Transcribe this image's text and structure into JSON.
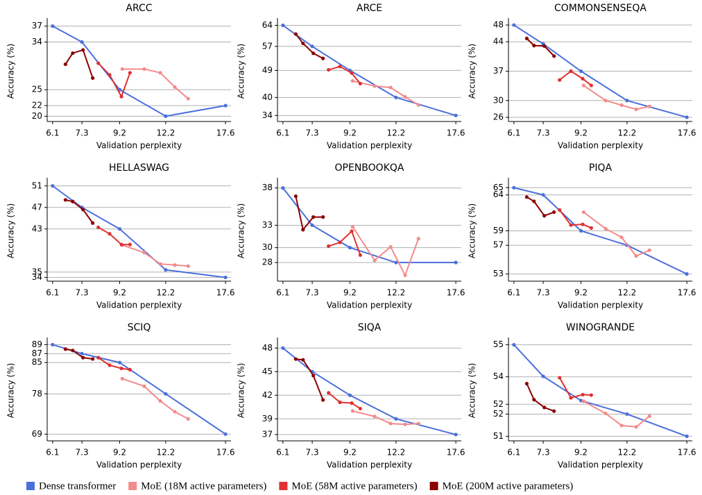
{
  "chart_data": [
    {
      "type": "line",
      "title": "ARCC",
      "xlabel": "Validation perplexity",
      "ylabel": "Accuracy (%)",
      "xscale": "log",
      "grid": true,
      "xlim": [
        5.9,
        18.2
      ],
      "xticks": [
        6.1,
        7.3,
        9.2,
        12.2,
        17.6
      ],
      "ylim": [
        19,
        38
      ],
      "yticks": [
        20,
        22,
        25,
        34,
        37
      ],
      "series": [
        {
          "name": "Dense transformer",
          "color": "#4a6fdc",
          "x": [
            6.1,
            7.3,
            9.2,
            12.2,
            17.6
          ],
          "values": [
            37,
            34,
            25,
            20,
            22
          ]
        },
        {
          "name": "MoE (18M active parameters)",
          "color": "#f28b8b",
          "x": [
            9.35,
            10.7,
            11.8,
            12.9,
            14.0
          ],
          "values": [
            28.9,
            28.9,
            28.2,
            25.5,
            23.3
          ]
        },
        {
          "name": "MoE (58M active parameters)",
          "color": "#e03030",
          "x": [
            8.07,
            8.65,
            9.3,
            9.8
          ],
          "values": [
            30,
            27.8,
            23.7,
            28.2
          ]
        },
        {
          "name": "MoE (200M active parameters)",
          "color": "#8b0000",
          "x": [
            6.6,
            6.9,
            7.35,
            7.8
          ],
          "values": [
            29.8,
            31.9,
            32.5,
            27.2
          ]
        }
      ]
    },
    {
      "type": "line",
      "title": "ARCE",
      "xlabel": "Validation perplexity",
      "ylabel": "Accuracy (%)",
      "xscale": "log",
      "grid": true,
      "xlim": [
        5.9,
        18.2
      ],
      "xticks": [
        6.1,
        7.3,
        9.2,
        12.2,
        17.6
      ],
      "ylim": [
        32,
        65.5
      ],
      "yticks": [
        34,
        40,
        49,
        57,
        64
      ],
      "series": [
        {
          "name": "Dense transformer",
          "color": "#4a6fdc",
          "x": [
            6.1,
            7.3,
            9.2,
            12.2,
            17.6
          ],
          "values": [
            64,
            57,
            49,
            40,
            34
          ]
        },
        {
          "name": "MoE (18M active parameters)",
          "color": "#f28b8b",
          "x": [
            9.35,
            10.7,
            11.8,
            12.9,
            14.0
          ],
          "values": [
            45.5,
            43.8,
            43.3,
            40.2,
            37.5
          ]
        },
        {
          "name": "MoE (58M active parameters)",
          "color": "#e03030",
          "x": [
            8.07,
            8.65,
            9.3,
            9.8
          ],
          "values": [
            49.2,
            50.3,
            48.1,
            44.6
          ]
        },
        {
          "name": "MoE (200M active parameters)",
          "color": "#8b0000",
          "x": [
            6.6,
            6.9,
            7.35,
            7.8
          ],
          "values": [
            61.1,
            58,
            54.7,
            53
          ]
        }
      ]
    },
    {
      "type": "line",
      "title": "COMMONSENSEQA",
      "xlabel": "Validation perplexity",
      "ylabel": "Accuracy (%)",
      "xscale": "log",
      "grid": true,
      "xlim": [
        5.9,
        18.2
      ],
      "xticks": [
        6.1,
        7.3,
        9.2,
        12.2,
        17.6
      ],
      "ylim": [
        25,
        49
      ],
      "yticks": [
        26,
        30,
        37,
        44,
        48
      ],
      "series": [
        {
          "name": "Dense transformer",
          "color": "#4a6fdc",
          "x": [
            6.1,
            7.3,
            9.2,
            12.2,
            17.6
          ],
          "values": [
            48,
            43.5,
            37,
            30,
            26
          ]
        },
        {
          "name": "MoE (18M active parameters)",
          "color": "#f28b8b",
          "x": [
            9.35,
            10.7,
            11.8,
            12.9,
            14.0
          ],
          "values": [
            33.6,
            30,
            28.9,
            27.9,
            28.6
          ]
        },
        {
          "name": "MoE (58M active parameters)",
          "color": "#e03030",
          "x": [
            8.07,
            8.65,
            9.3,
            9.8
          ],
          "values": [
            34.9,
            37,
            35.2,
            33.6
          ]
        },
        {
          "name": "MoE (200M active parameters)",
          "color": "#8b0000",
          "x": [
            6.6,
            6.9,
            7.35,
            7.8
          ],
          "values": [
            44.8,
            43.1,
            43,
            40.6
          ]
        }
      ]
    },
    {
      "type": "line",
      "title": "HELLASWAG",
      "xlabel": "Validation perplexity",
      "ylabel": "Accuracy (%)",
      "xscale": "log",
      "grid": true,
      "xlim": [
        5.9,
        18.2
      ],
      "xticks": [
        6.1,
        7.3,
        9.2,
        12.2,
        17.6
      ],
      "ylim": [
        33.3,
        52
      ],
      "yticks": [
        34,
        35,
        43,
        47,
        51
      ],
      "series": [
        {
          "name": "Dense transformer",
          "color": "#4a6fdc",
          "x": [
            6.1,
            7.3,
            9.2,
            12.2,
            17.6
          ],
          "values": [
            51,
            47,
            43,
            35.4,
            34
          ]
        },
        {
          "name": "MoE (18M active parameters)",
          "color": "#f28b8b",
          "x": [
            9.35,
            10.7,
            11.8,
            12.9,
            14.0
          ],
          "values": [
            40,
            38.6,
            36.5,
            36.3,
            36.1
          ]
        },
        {
          "name": "MoE (58M active parameters)",
          "color": "#e03030",
          "x": [
            8.07,
            8.65,
            9.3,
            9.8
          ],
          "values": [
            43.3,
            42.1,
            40.1,
            40.1
          ]
        },
        {
          "name": "MoE (200M active parameters)",
          "color": "#8b0000",
          "x": [
            6.6,
            6.9,
            7.35,
            7.8
          ],
          "values": [
            48.4,
            48.1,
            46.6,
            44.1
          ]
        }
      ]
    },
    {
      "type": "line",
      "title": "OPENBOOKQA",
      "xlabel": "Validation perplexity",
      "ylabel": "Accuracy (%)",
      "xscale": "log",
      "grid": true,
      "xlim": [
        5.9,
        18.2
      ],
      "xticks": [
        6.1,
        7.3,
        9.2,
        12.2,
        17.6
      ],
      "ylim": [
        25.5,
        39
      ],
      "yticks": [
        28,
        30,
        33,
        38
      ],
      "series": [
        {
          "name": "Dense transformer",
          "color": "#4a6fdc",
          "x": [
            6.1,
            7.3,
            9.2,
            12.2,
            17.6
          ],
          "values": [
            38,
            33,
            30,
            28,
            28
          ]
        },
        {
          "name": "MoE (18M active parameters)",
          "color": "#f28b8b",
          "x": [
            9.35,
            10.7,
            11.8,
            12.9,
            14.0
          ],
          "values": [
            32.8,
            28.3,
            30.1,
            26.3,
            31.2
          ]
        },
        {
          "name": "MoE (58M active parameters)",
          "color": "#e03030",
          "x": [
            8.07,
            8.65,
            9.3,
            9.8
          ],
          "values": [
            30.2,
            30.7,
            32.2,
            29
          ]
        },
        {
          "name": "MoE (200M active parameters)",
          "color": "#8b0000",
          "x": [
            6.6,
            6.9,
            7.35,
            7.8
          ],
          "values": [
            36.9,
            32.4,
            34.1,
            34.1
          ]
        }
      ]
    },
    {
      "type": "line",
      "title": "PIQA",
      "xlabel": "Validation perplexity",
      "ylabel": "Accuracy (%)",
      "xscale": "log",
      "grid": true,
      "xlim": [
        5.9,
        18.2
      ],
      "xticks": [
        6.1,
        7.3,
        9.2,
        12.2,
        17.6
      ],
      "ylim": [
        52,
        66
      ],
      "yticks": [
        53,
        57,
        59,
        64,
        65
      ],
      "series": [
        {
          "name": "Dense transformer",
          "color": "#4a6fdc",
          "x": [
            6.1,
            7.3,
            9.2,
            12.2,
            17.6
          ],
          "values": [
            65,
            64,
            59,
            57,
            53
          ]
        },
        {
          "name": "MoE (18M active parameters)",
          "color": "#f28b8b",
          "x": [
            9.35,
            10.7,
            11.8,
            12.9,
            14.0
          ],
          "values": [
            61.6,
            59.3,
            58.1,
            55.5,
            56.3
          ]
        },
        {
          "name": "MoE (58M active parameters)",
          "color": "#e03030",
          "x": [
            8.07,
            8.65,
            9.3,
            9.8
          ],
          "values": [
            61.9,
            59.8,
            59.9,
            59.4
          ]
        },
        {
          "name": "MoE (200M active parameters)",
          "color": "#8b0000",
          "x": [
            6.6,
            6.9,
            7.35,
            7.8
          ],
          "values": [
            63.7,
            63.1,
            61.1,
            61.6
          ]
        }
      ]
    },
    {
      "type": "line",
      "title": "SCIQ",
      "xlabel": "Validation perplexity",
      "ylabel": "Accuracy (%)",
      "xscale": "log",
      "grid": true,
      "xlim": [
        5.9,
        18.2
      ],
      "xticks": [
        6.1,
        7.3,
        9.2,
        12.2,
        17.6
      ],
      "ylim": [
        67.5,
        90
      ],
      "yticks": [
        69,
        78,
        85,
        87,
        89
      ],
      "series": [
        {
          "name": "Dense transformer",
          "color": "#4a6fdc",
          "x": [
            6.1,
            7.3,
            9.2,
            12.2,
            17.6
          ],
          "values": [
            89,
            87,
            85,
            78,
            69
          ]
        },
        {
          "name": "MoE (18M active parameters)",
          "color": "#f28b8b",
          "x": [
            9.35,
            10.7,
            11.8,
            12.9,
            14.0
          ],
          "values": [
            81.4,
            79.7,
            76.4,
            74,
            72.4
          ]
        },
        {
          "name": "MoE (58M active parameters)",
          "color": "#e03030",
          "x": [
            8.07,
            8.65,
            9.3,
            9.8
          ],
          "values": [
            86.1,
            84.4,
            83.7,
            83.4
          ]
        },
        {
          "name": "MoE (200M active parameters)",
          "color": "#8b0000",
          "x": [
            6.6,
            6.9,
            7.35,
            7.8
          ],
          "values": [
            88,
            87.7,
            86.1,
            85.8
          ]
        }
      ]
    },
    {
      "type": "line",
      "title": "SIQA",
      "xlabel": "Validation perplexity",
      "ylabel": "Accuracy (%)",
      "xscale": "log",
      "grid": true,
      "xlim": [
        5.9,
        18.2
      ],
      "xticks": [
        6.1,
        7.3,
        9.2,
        12.2,
        17.6
      ],
      "ylim": [
        36.2,
        49
      ],
      "yticks": [
        37,
        39,
        42,
        45,
        48
      ],
      "series": [
        {
          "name": "Dense transformer",
          "color": "#4a6fdc",
          "x": [
            6.1,
            7.3,
            9.2,
            12.2,
            17.6
          ],
          "values": [
            48,
            45,
            42,
            39,
            37
          ]
        },
        {
          "name": "MoE (18M active parameters)",
          "color": "#f28b8b",
          "x": [
            9.35,
            10.7,
            11.8,
            12.9,
            14.0
          ],
          "values": [
            40,
            39.3,
            38.4,
            38.3,
            38.4
          ]
        },
        {
          "name": "MoE (58M active parameters)",
          "color": "#e03030",
          "x": [
            8.07,
            8.65,
            9.3,
            9.8
          ],
          "values": [
            42.3,
            41.1,
            41,
            40.3
          ]
        },
        {
          "name": "MoE (200M active parameters)",
          "color": "#8b0000",
          "x": [
            6.6,
            6.9,
            7.35,
            7.8
          ],
          "values": [
            46.6,
            46.5,
            44.5,
            41.4
          ]
        }
      ]
    },
    {
      "type": "line",
      "title": "WINOGRANDE",
      "xlabel": "Validation perplexity",
      "ylabel": "Accuracy (%)",
      "xscale": "log",
      "grid": true,
      "xlim": [
        5.9,
        18.2
      ],
      "xticks": [
        6.1,
        7.3,
        9.2,
        12.2,
        17.6
      ],
      "ylim": [
        50.8,
        55.2
      ],
      "yticks": [
        51,
        {
          "value": 51.97,
          "label": "52"
        },
        {
          "value": 52.4,
          "label": "52"
        },
        {
          "value": 53.6,
          "label": "54"
        },
        55
      ],
      "series": [
        {
          "name": "Dense transformer",
          "color": "#4a6fdc",
          "x": [
            6.1,
            7.3,
            9.2,
            12.2,
            17.6
          ],
          "values": [
            55,
            53.62,
            52.56,
            51.97,
            51
          ]
        },
        {
          "name": "MoE (18M active parameters)",
          "color": "#f28b8b",
          "x": [
            9.35,
            10.7,
            11.8,
            12.9,
            14.0
          ],
          "values": [
            52.53,
            52,
            51.47,
            51.41,
            51.88
          ]
        },
        {
          "name": "MoE (58M active parameters)",
          "color": "#e03030",
          "x": [
            8.07,
            8.65,
            9.3,
            9.8
          ],
          "values": [
            53.56,
            52.68,
            52.82,
            52.8
          ]
        },
        {
          "name": "MoE (200M active parameters)",
          "color": "#8b0000",
          "x": [
            6.6,
            6.9,
            7.35,
            7.8
          ],
          "values": [
            53.3,
            52.6,
            52.26,
            52.1
          ]
        }
      ]
    }
  ]
}
